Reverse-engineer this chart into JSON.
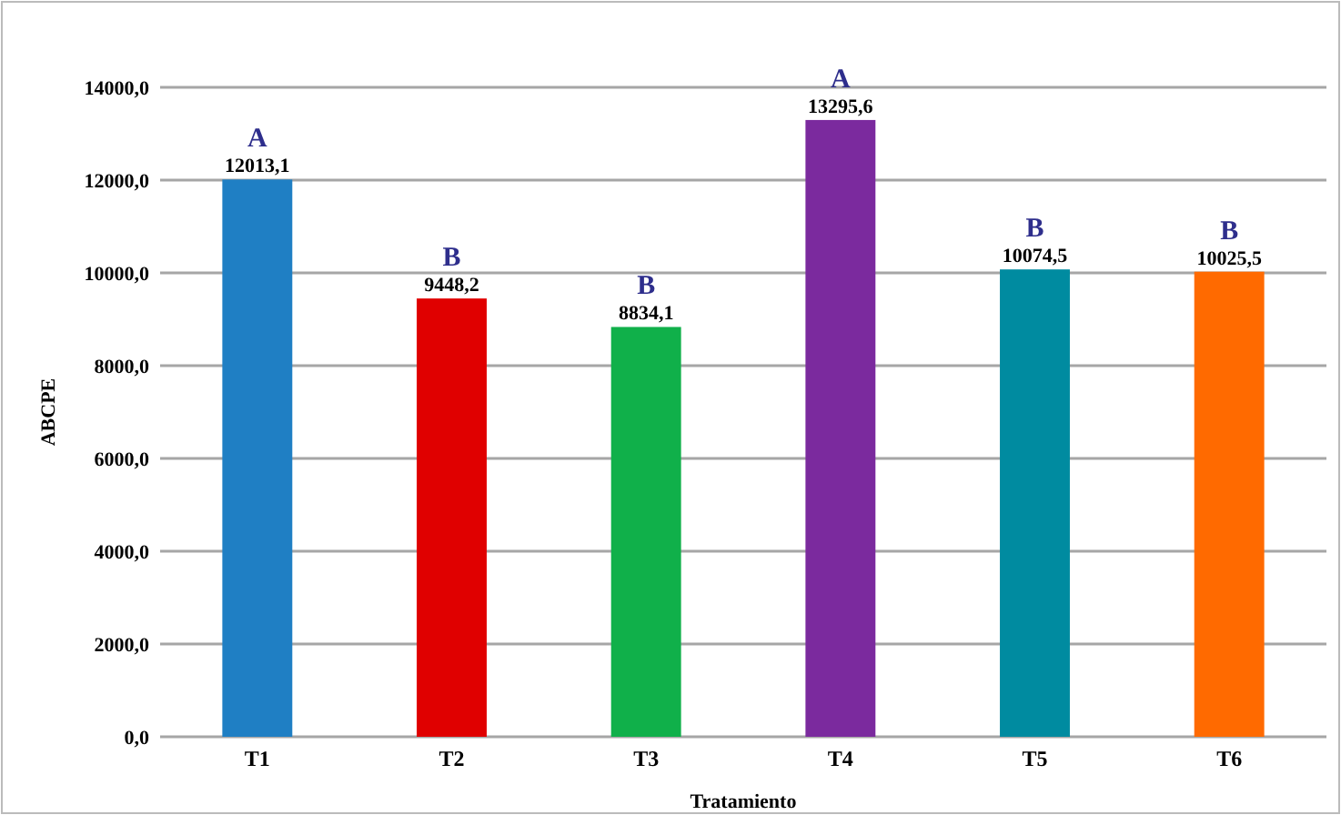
{
  "chart_data": {
    "type": "bar",
    "xlabel": "Tratamiento",
    "ylabel": "ABCPE",
    "categories": [
      "T1",
      "T2",
      "T3",
      "T4",
      "T5",
      "T6"
    ],
    "values": [
      12013.1,
      9448.2,
      8834.1,
      13295.6,
      10074.5,
      10025.5
    ],
    "colors": [
      "#1f7fc4",
      "#e00000",
      "#10b04a",
      "#7b2a9e",
      "#008ba0",
      "#ff6a00"
    ],
    "value_labels": [
      "12013,1",
      "9448,2",
      "8834,1",
      "13295,6",
      "10074,5",
      "10025,5"
    ],
    "ylim": [
      0,
      14000
    ],
    "yticks": [
      {
        "value": 0,
        "label": "0,0"
      },
      {
        "value": 2000,
        "label": "2000,0"
      },
      {
        "value": 4000,
        "label": "4000,0"
      },
      {
        "value": 6000,
        "label": "6000,0"
      },
      {
        "value": 8000,
        "label": "8000,0"
      },
      {
        "value": 10000,
        "label": "10000,0"
      },
      {
        "value": 12000,
        "label": "12000,0"
      },
      {
        "value": 14000,
        "label": "14000,0"
      }
    ],
    "grid": "y",
    "annotations": [
      {
        "text": "A",
        "x": "T1",
        "y": 12013.1
      },
      {
        "text": "B",
        "x": "T2",
        "y": 9448.2
      },
      {
        "text": "B",
        "x": "T3",
        "y": 8834.1
      },
      {
        "text": "A",
        "x": "T4",
        "y": 13295.6
      },
      {
        "text": "B",
        "x": "T5",
        "y": 10074.5
      },
      {
        "text": "B",
        "x": "T6",
        "y": 10025.5
      }
    ]
  }
}
